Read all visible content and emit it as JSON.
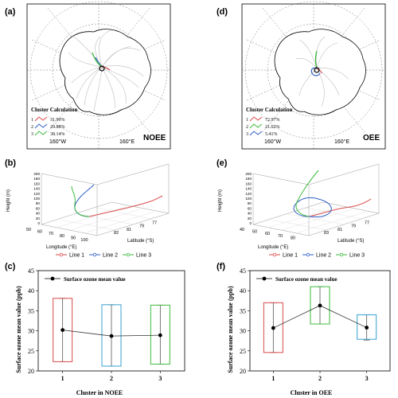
{
  "panels": [
    {
      "id": "a",
      "label": "(a)",
      "tag": "NOEE",
      "legend_title": "Cluster Calculation",
      "clusters": [
        {
          "num": "1",
          "pct": "31.99%",
          "color": "#d94a4a"
        },
        {
          "num": "2",
          "pct": "29.88%",
          "color": "#2f5fc4"
        },
        {
          "num": "3",
          "pct": "38.14%",
          "color": "#3dbb3d"
        }
      ],
      "lon_labels": [
        "160°W",
        "160°E"
      ]
    },
    {
      "id": "d",
      "label": "(d)",
      "tag": "OEE",
      "legend_title": "Cluster Calculation",
      "clusters": [
        {
          "num": "1",
          "pct": "72.97%",
          "color": "#d94a4a"
        },
        {
          "num": "2",
          "pct": "21.62%",
          "color": "#3dbb3d"
        },
        {
          "num": "3",
          "pct": "5.41%",
          "color": "#2f5fc4"
        }
      ],
      "lon_labels": [
        "160°W",
        "160°E"
      ]
    }
  ],
  "panels3d": [
    {
      "id": "b",
      "label": "(b)",
      "z_label": "Height (m)",
      "z_ticks": [
        "200",
        "180",
        "160",
        "140",
        "120",
        "100",
        "80",
        "60",
        "40",
        "20",
        "0"
      ],
      "lon_label": "Longitude (°E)",
      "lon_ticks": [
        "50",
        "60",
        "70",
        "80",
        "90",
        "100"
      ],
      "lat_label": "Latitude (°S)",
      "lat_ticks": [
        "82",
        "81",
        "79",
        "77"
      ],
      "lat_ticks_x": [],
      "legend": [
        "Line 1",
        "Line 2",
        "Line 3"
      ]
    },
    {
      "id": "e",
      "label": "(e)",
      "z_label": "Height (m)",
      "z_ticks": [
        "200",
        "180",
        "160",
        "140",
        "120",
        "100",
        "80",
        "60",
        "40",
        "20",
        "0"
      ],
      "lon_label": "Longitude (°E)",
      "lon_ticks": [
        "40",
        "50",
        "60",
        "70",
        "80"
      ],
      "lat_label": "Latitude (°S)",
      "lat_ticks": [
        "83",
        "81",
        "79",
        "77"
      ],
      "legend": [
        "Line 1",
        "Line 2",
        "Line 3"
      ]
    }
  ],
  "series_colors": {
    "line1": "#d94a4a",
    "line2": "#2f5fc4",
    "line3": "#3dbb3d"
  },
  "chart_data": [
    {
      "id": "c",
      "label": "(c)",
      "type": "box",
      "ylabel": "Surface ozone mean value (ppb)",
      "xlabel": "Cluster in NOEE",
      "legend": "Surface ozone mean value",
      "categories": [
        "1",
        "2",
        "3"
      ],
      "ylim": [
        20,
        45
      ],
      "yticks": [
        20,
        25,
        30,
        35,
        40,
        45
      ],
      "means": [
        30.2,
        28.7,
        28.9
      ],
      "box_low": [
        22.3,
        21.2,
        21.7
      ],
      "box_high": [
        38.1,
        36.5,
        36.4
      ],
      "whisker_low": [
        22.3,
        21.2,
        21.7
      ],
      "whisker_high": [
        38.1,
        36.5,
        36.4
      ],
      "box_colors": [
        "#d94a4a",
        "#38a0cf",
        "#3dbb3d"
      ]
    },
    {
      "id": "f",
      "label": "(f)",
      "type": "box",
      "ylabel": "Surface ozone mean value (ppb)",
      "xlabel": "Cluster in OEE",
      "legend": "Surface ozone mean value",
      "categories": [
        "1",
        "2",
        "3"
      ],
      "ylim": [
        20,
        45
      ],
      "yticks": [
        20,
        25,
        30,
        35,
        40,
        45
      ],
      "means": [
        30.7,
        36.3,
        30.8
      ],
      "box_low": [
        24.6,
        31.7,
        27.9
      ],
      "box_high": [
        37.0,
        41.0,
        34.0
      ],
      "whisker_low": [
        24.6,
        31.7,
        27.7
      ],
      "whisker_high": [
        37.0,
        41.0,
        34.0
      ],
      "box_colors": [
        "#d94a4a",
        "#3dbb3d",
        "#38a0cf"
      ]
    }
  ]
}
